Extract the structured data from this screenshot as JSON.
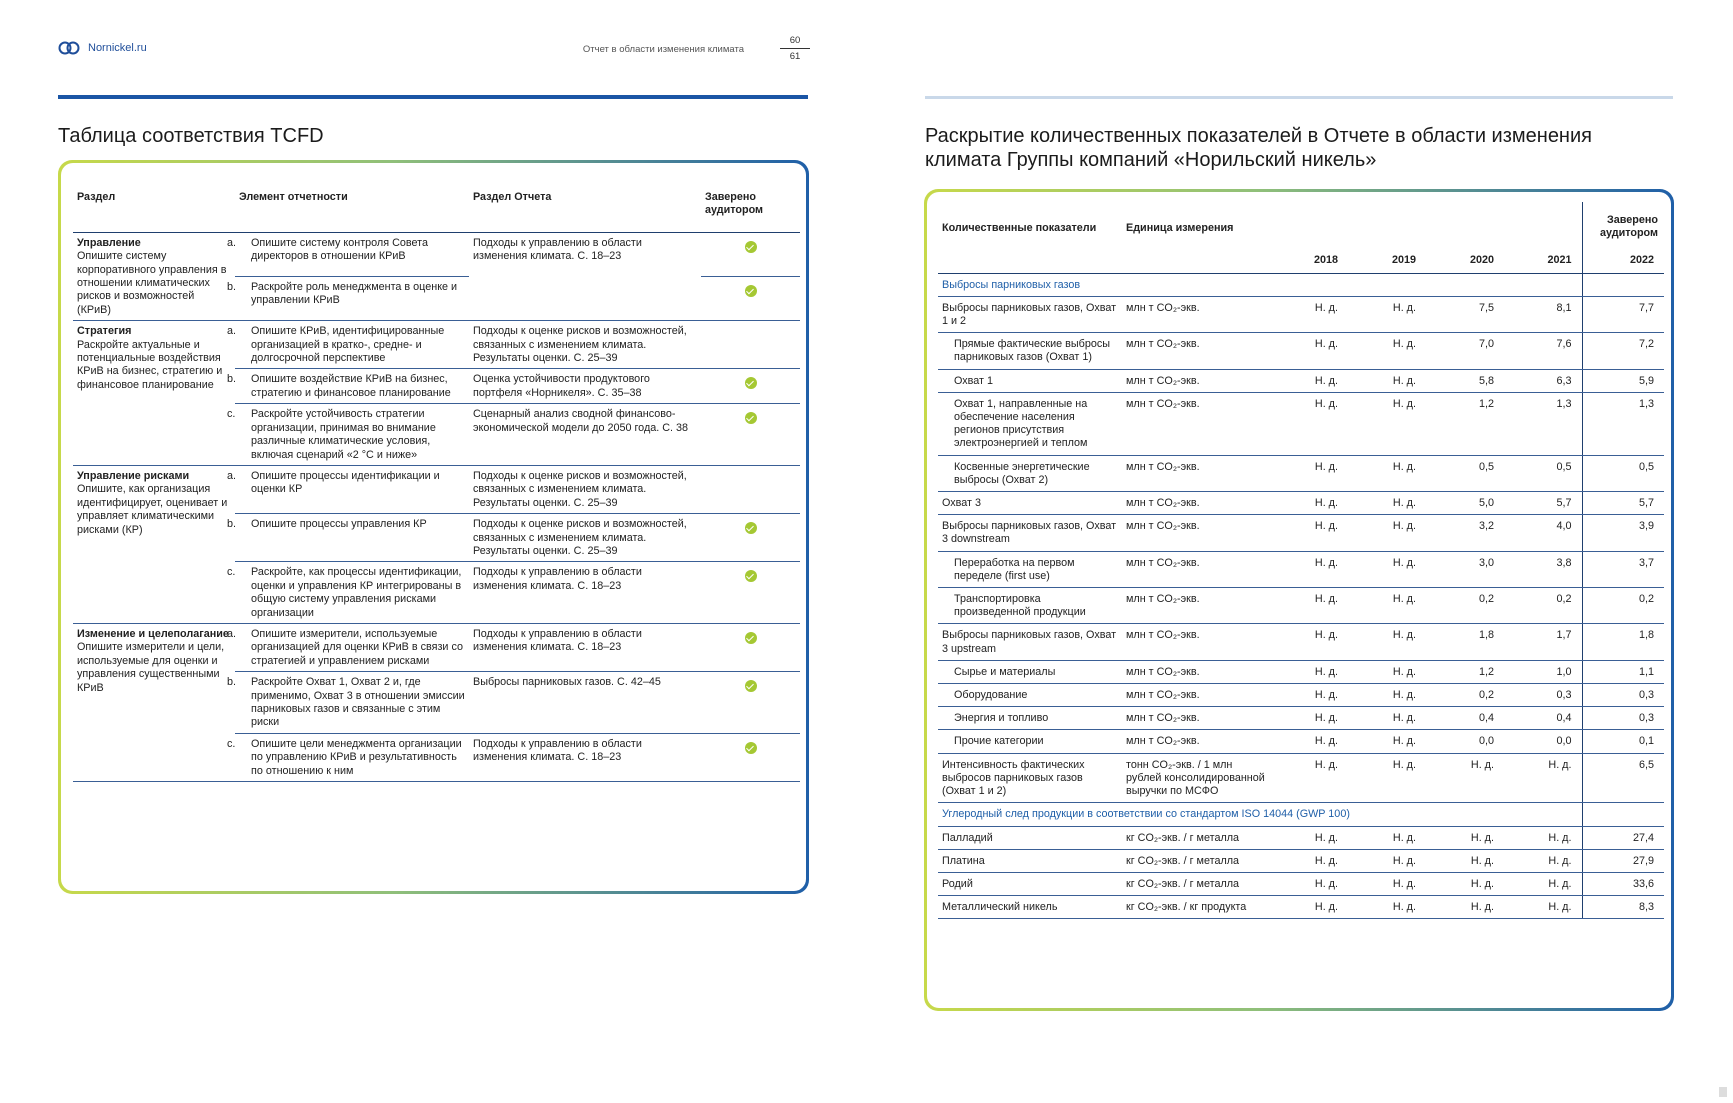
{
  "header": {
    "site": "Nornickel.ru",
    "doc_title": "Отчет в области изменения климата",
    "page_left": "60",
    "page_right": "61",
    "brand_color": "#1a55a5",
    "logo_icon": "nornickel-logo-icon"
  },
  "tcfd": {
    "title": "Таблица соответствия TCFD",
    "columns": {
      "section": "Раздел",
      "element": "Элемент отчетности",
      "report": "Раздел Отчета",
      "audited": "Заверено аудитором"
    },
    "groups": [
      {
        "name": "Управление",
        "desc": "Опишите систему корпоративного управления в отношении климатических рисков и возможностей (КРиВ)",
        "rows": [
          {
            "letter": "a.",
            "element": "Опишите систему контроля Совета директоров в отношении КРиВ",
            "report": "Подходы к управлению в области изменения климата. С. 18–23",
            "audited": true
          },
          {
            "letter": "b.",
            "element": "Раскройте роль менеджмента в оценке и управлении КРиВ",
            "report": "",
            "audited": true
          }
        ]
      },
      {
        "name": "Стратегия",
        "desc": "Раскройте актуальные и потенциальные воздействия КРиВ на бизнес, стратегию и финансовое планирование",
        "rows": [
          {
            "letter": "a.",
            "element": "Опишите КРиВ, идентифицированные организацией в кратко-, средне- и долгосрочной перспективе",
            "report": "Подходы к оценке рисков и возможностей, связанных с изменением климата. Результаты оценки. С. 25–39",
            "audited": false
          },
          {
            "letter": "b.",
            "element": "Опишите воздействие КРиВ на бизнес, стратегию и финансовое планирование",
            "report": "Оценка устойчивости продуктового портфеля «Норникеля». С. 35–38",
            "audited": true
          },
          {
            "letter": "c.",
            "element": "Раскройте устойчивость стратегии организации, принимая во внимание различные климатические условия, включая сценарий «2 °C и ниже»",
            "report": "Сценарный анализ сводной финансово-экономической модели до 2050 года. С. 38",
            "audited": true
          }
        ]
      },
      {
        "name": "Управление рисками",
        "desc": "Опишите, как организация идентифицирует, оценивает и управляет климатическими рисками (КР)",
        "rows": [
          {
            "letter": "a.",
            "element": "Опишите процессы идентификации и оценки КР",
            "report": "Подходы к оценке рисков и возможностей, связанных с изменением климата. Результаты оценки. С. 25–39",
            "audited": false
          },
          {
            "letter": "b.",
            "element": "Опишите процессы управления КР",
            "report": "Подходы к оценке рисков и возможностей, связанных с изменением климата. Результаты оценки. С. 25–39",
            "audited": true
          },
          {
            "letter": "c.",
            "element": "Раскройте, как процессы идентификации, оценки и управления КР интегрированы в общую систему управления рисками организации",
            "report": "Подходы к управлению в области изменения климата. С. 18–23",
            "audited": true
          }
        ]
      },
      {
        "name": "Изменение и целеполагание",
        "desc": "Опишите измерители и цели, используемые для оценки и управления существенными КРиВ",
        "rows": [
          {
            "letter": "a.",
            "element": "Опишите измерители, используемые организацией для оценки КРиВ в связи со стратегией и управлением рисками",
            "report": "Подходы к управлению в области изменения климата. С. 18–23",
            "audited": true
          },
          {
            "letter": "b.",
            "element": "Раскройте Охват 1, Охват 2 и, где применимо, Охват 3 в отношении эмиссии парниковых газов и связанные с этим риски",
            "report": "Выбросы парниковых газов. С. 42–45",
            "audited": true
          },
          {
            "letter": "c.",
            "element": "Опишите цели менеджмента организации по управлению КРиВ и результативность по отношению к ним",
            "report": "Подходы к управлению в области изменения климата. С. 18–23",
            "audited": true
          }
        ]
      }
    ]
  },
  "quant": {
    "title": "Раскрытие количественных показателей в Отчете в области изменения климата Группы компаний «Норильский никель»",
    "columns": {
      "indicator": "Количественные показатели",
      "unit": "Единица измерения",
      "audited": "Заверено аудитором"
    },
    "years": [
      "2018",
      "2019",
      "2020",
      "2021",
      "2022"
    ],
    "sections": [
      {
        "title": "Выбросы парниковых газов",
        "rows": [
          {
            "label": "Выбросы парниковых газов, Охват 1 и 2",
            "unit": "млн т CO₂-экв.",
            "sub": false,
            "values": [
              "Н. д.",
              "Н. д.",
              "7,5",
              "8,1",
              "7,7"
            ]
          },
          {
            "label": "Прямые фактические выбросы парниковых газов (Охват 1)",
            "unit": "млн т CO₂-экв.",
            "sub": true,
            "values": [
              "Н. д.",
              "Н. д.",
              "7,0",
              "7,6",
              "7,2"
            ]
          },
          {
            "label": "Охват 1",
            "unit": "млн т CO₂-экв.",
            "sub": true,
            "values": [
              "Н. д.",
              "Н. д.",
              "5,8",
              "6,3",
              "5,9"
            ]
          },
          {
            "label": "Охват 1, направленные на обеспечение населения регионов присутствия электроэнергией и теплом",
            "unit": "млн т CO₂-экв.",
            "sub": true,
            "values": [
              "Н. д.",
              "Н. д.",
              "1,2",
              "1,3",
              "1,3"
            ]
          },
          {
            "label": "Косвенные энергетические выбросы (Охват 2)",
            "unit": "млн т CO₂-экв.",
            "sub": true,
            "values": [
              "Н. д.",
              "Н. д.",
              "0,5",
              "0,5",
              "0,5"
            ]
          },
          {
            "label": "Охват 3",
            "unit": "млн т CO₂-экв.",
            "sub": false,
            "values": [
              "Н. д.",
              "Н. д.",
              "5,0",
              "5,7",
              "5,7"
            ]
          },
          {
            "label": "Выбросы парниковых газов, Охват 3 downstream",
            "unit": "млн т CO₂-экв.",
            "sub": false,
            "values": [
              "Н. д.",
              "Н. д.",
              "3,2",
              "4,0",
              "3,9"
            ]
          },
          {
            "label": "Переработка на первом переделе (first use)",
            "unit": "млн т CO₂-экв.",
            "sub": true,
            "values": [
              "Н. д.",
              "Н. д.",
              "3,0",
              "3,8",
              "3,7"
            ]
          },
          {
            "label": "Транспортировка произведенной продукции",
            "unit": "млн т CO₂-экв.",
            "sub": true,
            "values": [
              "Н. д.",
              "Н. д.",
              "0,2",
              "0,2",
              "0,2"
            ]
          },
          {
            "label": "Выбросы парниковых газов, Охват 3 upstream",
            "unit": "млн т CO₂-экв.",
            "sub": false,
            "values": [
              "Н. д.",
              "Н. д.",
              "1,8",
              "1,7",
              "1,8"
            ]
          },
          {
            "label": "Сырье и материалы",
            "unit": "млн т CO₂-экв.",
            "sub": true,
            "values": [
              "Н. д.",
              "Н. д.",
              "1,2",
              "1,0",
              "1,1"
            ]
          },
          {
            "label": "Оборудование",
            "unit": "млн т CO₂-экв.",
            "sub": true,
            "values": [
              "Н. д.",
              "Н. д.",
              "0,2",
              "0,3",
              "0,3"
            ]
          },
          {
            "label": "Энергия и топливо",
            "unit": "млн т CO₂-экв.",
            "sub": true,
            "values": [
              "Н. д.",
              "Н. д.",
              "0,4",
              "0,4",
              "0,3"
            ]
          },
          {
            "label": "Прочие категории",
            "unit": "млн т CO₂-экв.",
            "sub": true,
            "values": [
              "Н. д.",
              "Н. д.",
              "0,0",
              "0,0",
              "0,1"
            ]
          },
          {
            "label": "Интенсивность фактических выбросов парниковых газов (Охват 1 и 2)",
            "unit": "тонн CO₂-экв. / 1 млн рублей консолидированной выручки по МСФО",
            "sub": false,
            "values": [
              "Н. д.",
              "Н. д.",
              "Н. д.",
              "Н. д.",
              "6,5"
            ]
          }
        ]
      },
      {
        "title": "Углеродный след продукции в соответствии со стандартом ISO 14044 (GWP 100)",
        "rows": [
          {
            "label": "Палладий",
            "unit": "кг CO₂-экв. / г металла",
            "sub": false,
            "values": [
              "Н. д.",
              "Н. д.",
              "Н. д.",
              "Н. д.",
              "27,4"
            ]
          },
          {
            "label": "Платина",
            "unit": "кг CO₂-экв. / г металла",
            "sub": false,
            "values": [
              "Н. д.",
              "Н. д.",
              "Н. д.",
              "Н. д.",
              "27,9"
            ]
          },
          {
            "label": "Родий",
            "unit": "кг CO₂-экв. / г металла",
            "sub": false,
            "values": [
              "Н. д.",
              "Н. д.",
              "Н. д.",
              "Н. д.",
              "33,6"
            ]
          },
          {
            "label": "Металлический никель",
            "unit": "кг CO₂-экв. / кг продукта",
            "sub": false,
            "values": [
              "Н. д.",
              "Н. д.",
              "Н. д.",
              "Н. д.",
              "8,3"
            ]
          }
        ]
      }
    ]
  }
}
